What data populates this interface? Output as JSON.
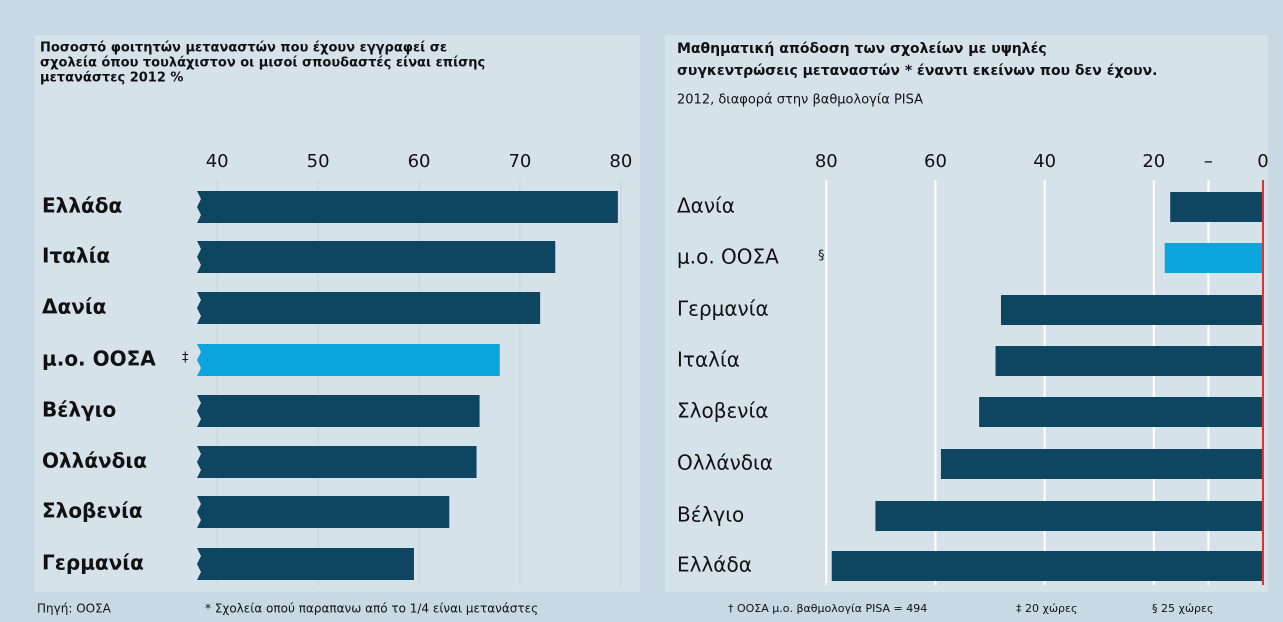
{
  "chart_data": [
    {
      "type": "hbar",
      "title": [
        "Ποσοστό φοιτητών μεταναστών που έχουν εγγραφεί σε",
        "σχολεία όπου τουλάχιστον οι μισοί σπουδαστές είναι επίσης",
        "μετανάστες 2012 %"
      ],
      "categories": [
        "Ελλάδα",
        "Ιταλία",
        "Δανία",
        "μ.ο. ΟΟΣΑ",
        "Βέλγιο",
        "Ολλάνδια",
        "Σλοβενία",
        "Γερμανία"
      ],
      "values": [
        79.7,
        73.5,
        72,
        68,
        66,
        65.7,
        63,
        59.5
      ],
      "colors": [
        "#0e4561",
        "#0e4561",
        "#0e4561",
        "#0ba5de",
        "#0e4561",
        "#0e4561",
        "#0e4561",
        "#0e4561"
      ],
      "category_marks": [
        null,
        null,
        null,
        "‡",
        null,
        null,
        null,
        null
      ],
      "xlim": [
        38,
        81.4
      ],
      "xticks": [
        40,
        50,
        60,
        70,
        80
      ],
      "grid": true,
      "reversed": false
    },
    {
      "type": "hbar",
      "title": [
        "Μαθηματική απόδοση των σχολείων με υψηλές",
        "συγκεντρώσεις μεταναστών * έναντι εκείνων που δεν έχουν."
      ],
      "subtitle": "2012, διαφορά στην βαθμολογία PISA",
      "categories": [
        "Δανία",
        "μ.ο. ΟΟΣΑ",
        "Γερμανία",
        "Ιταλία",
        "Σλοβενία",
        "Ολλάνδια",
        "Βέλγιο",
        "Ελλάδα"
      ],
      "values": [
        17,
        18,
        48,
        49,
        52,
        59,
        71,
        79
      ],
      "colors": [
        "#0e4561",
        "#0ba5de",
        "#0e4561",
        "#0e4561",
        "#0e4561",
        "#0e4561",
        "#0e4561",
        "#0e4561"
      ],
      "category_marks": [
        null,
        "§",
        null,
        null,
        null,
        null,
        null,
        null
      ],
      "xlim": [
        0,
        85
      ],
      "xticks": [
        80,
        60,
        40,
        20,
        {
          "value": 10,
          "label": "–"
        },
        0
      ],
      "grid": true,
      "reversed": true
    }
  ],
  "footer": [
    "Πηγή: ΟΟΣΑ",
    "* Σχολεία οπού παραπανω από το 1/4 είναι μετανάστες",
    "† ΟΟΣΑ μ.ο. βαθμολογία PISA = 494",
    "‡ 20 χώρες",
    "§ 25 χώρες"
  ]
}
